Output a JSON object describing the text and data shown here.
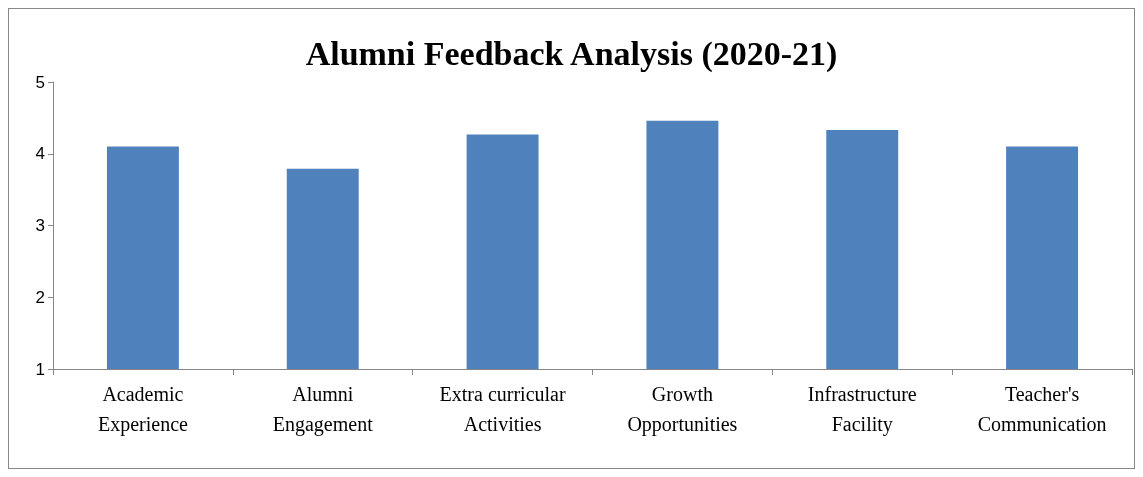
{
  "chart_data": {
    "type": "bar",
    "title": "Alumni Feedback Analysis (2020-21)",
    "categories": [
      "Academic Experience",
      "Alumni Engagement",
      "Extra curricular Activities",
      "Growth Opportunities",
      "Infrastructure Facility",
      "Teacher's Communication"
    ],
    "values": [
      4.1,
      3.79,
      4.27,
      4.46,
      4.33,
      4.1
    ],
    "color": "#4f81bd",
    "ylim": [
      1,
      5
    ],
    "yticks": [
      1,
      2,
      3,
      4,
      5
    ],
    "grid": false
  }
}
